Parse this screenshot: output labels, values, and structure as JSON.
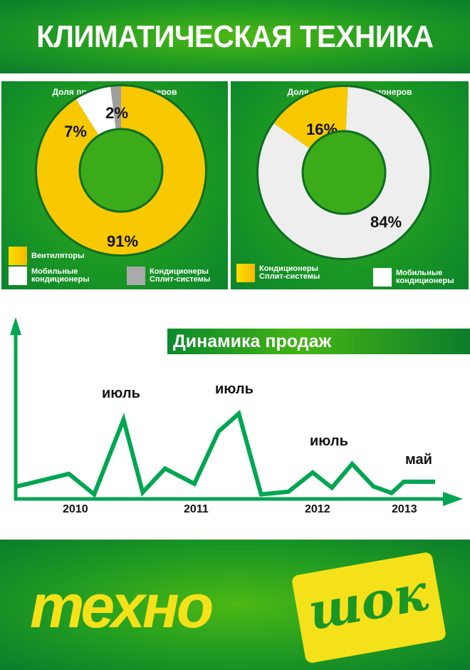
{
  "header": {
    "title": "КЛИМАТИЧЕСКАЯ ТЕХНИКА"
  },
  "chart_data": [
    {
      "type": "pie",
      "title": "Доля продаж кондиционеров",
      "slices": [
        {
          "label": "Вентиляторы",
          "value": 91,
          "text": "91%",
          "color": "#f8c800"
        },
        {
          "label": "Мобильные кондиционеры",
          "value": 7,
          "text": "7%",
          "color": "#ffffff"
        },
        {
          "label": "Кондиционеры Сплит-системы",
          "value": 2,
          "text": "2%",
          "color": "#9e9e9e"
        }
      ],
      "legend": [
        "Вентиляторы",
        "Мобильные кондиционеры",
        "Кондиционеры Сплит-системы"
      ]
    },
    {
      "type": "pie",
      "title": "Доля продаж кондиционеров",
      "slices": [
        {
          "label": "Кондиционеры Сплит-системы",
          "value": 16,
          "text": "16%",
          "color": "#f8c800"
        },
        {
          "label": "Мобильные кондиционеры",
          "value": 84,
          "text": "84%",
          "color": "#eeeeee"
        }
      ],
      "legend": [
        "Кондиционеры Сплит-системы",
        "Мобильные кондиционеры"
      ]
    },
    {
      "type": "line",
      "title": "Динамика продаж",
      "xlabel": "",
      "ylabel": "",
      "x_ticks": [
        "2010",
        "2011",
        "2012",
        "2013"
      ],
      "annotations": [
        "июль",
        "июль",
        "июль",
        "май"
      ],
      "x": [
        0,
        5.4,
        7.9,
        10.8,
        12.7,
        14.9,
        17.8,
        20.2,
        22.2,
        24.4,
        27.1,
        29.5,
        31.4,
        33.4,
        35.5,
        37.3,
        38.5,
        41.6
      ],
      "y": [
        19,
        39,
        8,
        121,
        11,
        47,
        24,
        103,
        130,
        8,
        12,
        41,
        18,
        54,
        20,
        10,
        27,
        27
      ],
      "xlim": [
        0,
        44
      ],
      "ylim": [
        0,
        140
      ],
      "color": "#00a651"
    }
  ],
  "footer": {
    "logo_left": "техно",
    "logo_right": "шок"
  }
}
